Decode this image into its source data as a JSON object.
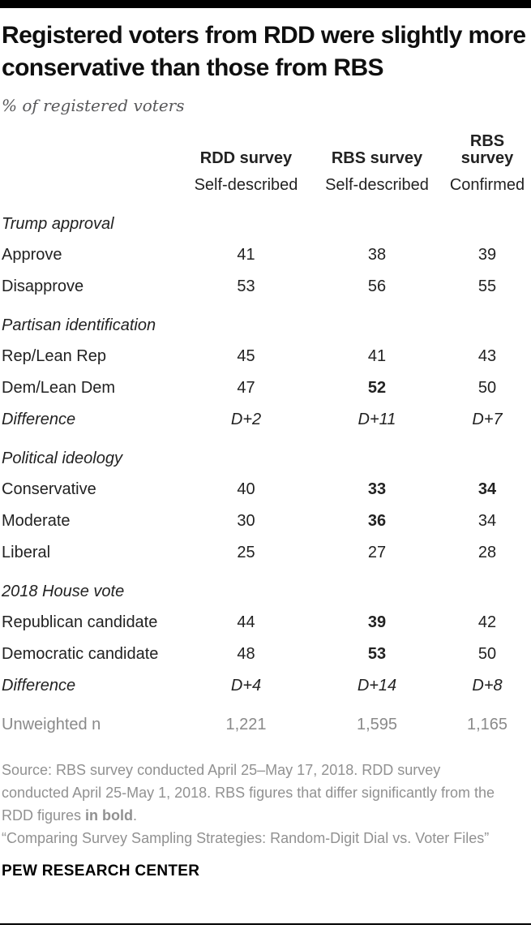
{
  "colors": {
    "top_bar": "#000000",
    "title_text": "#0f0f0f",
    "subtitle_gray": "#58585a",
    "table_text": "#222222",
    "muted_gray": "#8a8a8a",
    "notes_gray": "#919191"
  },
  "chart_data": {
    "type": "table",
    "title": "Registered voters from RDD were slightly more conservative than those from RBS",
    "subtitle": "% of registered voters",
    "columns": [
      {
        "label": "RDD survey",
        "sublabel": "Self-described"
      },
      {
        "label": "RBS survey",
        "sublabel": "Self-described"
      },
      {
        "label": "RBS survey",
        "sublabel": "Confirmed"
      }
    ],
    "sections": [
      {
        "header": "Trump approval",
        "rows": [
          {
            "label": "Approve",
            "values": [
              {
                "t": "41"
              },
              {
                "t": "38"
              },
              {
                "t": "39"
              }
            ]
          },
          {
            "label": "Disapprove",
            "values": [
              {
                "t": "53"
              },
              {
                "t": "56"
              },
              {
                "t": "55"
              }
            ]
          }
        ]
      },
      {
        "header": "Partisan identification",
        "rows": [
          {
            "label": "Rep/Lean Rep",
            "values": [
              {
                "t": "45"
              },
              {
                "t": "41"
              },
              {
                "t": "43"
              }
            ]
          },
          {
            "label": "Dem/Lean Dem",
            "values": [
              {
                "t": "47"
              },
              {
                "t": "52",
                "bold": true
              },
              {
                "t": "50"
              }
            ]
          },
          {
            "label": "Difference",
            "italic": true,
            "values": [
              {
                "t": "D+2"
              },
              {
                "t": "D+11"
              },
              {
                "t": "D+7"
              }
            ]
          }
        ]
      },
      {
        "header": "Political ideology",
        "rows": [
          {
            "label": "Conservative",
            "values": [
              {
                "t": "40"
              },
              {
                "t": "33",
                "bold": true
              },
              {
                "t": "34",
                "bold": true
              }
            ]
          },
          {
            "label": "Moderate",
            "values": [
              {
                "t": "30"
              },
              {
                "t": "36",
                "bold": true
              },
              {
                "t": "34"
              }
            ]
          },
          {
            "label": "Liberal",
            "values": [
              {
                "t": "25"
              },
              {
                "t": "27"
              },
              {
                "t": "28"
              }
            ]
          }
        ]
      },
      {
        "header": "2018 House vote",
        "rows": [
          {
            "label": "Republican candidate",
            "values": [
              {
                "t": "44"
              },
              {
                "t": "39",
                "bold": true
              },
              {
                "t": "42"
              }
            ]
          },
          {
            "label": "Democratic candidate",
            "values": [
              {
                "t": "48"
              },
              {
                "t": "53",
                "bold": true
              },
              {
                "t": "50"
              }
            ]
          },
          {
            "label": "Difference",
            "italic": true,
            "values": [
              {
                "t": "D+4"
              },
              {
                "t": "D+14"
              },
              {
                "t": "D+8"
              }
            ]
          }
        ]
      }
    ],
    "summary_row": {
      "label": "Unweighted n",
      "values": [
        {
          "t": "1,221"
        },
        {
          "t": "1,595"
        },
        {
          "t": "1,165"
        }
      ]
    }
  },
  "notes": {
    "source_text": "Source: RBS survey conducted April 25–May 17, 2018. RDD survey conducted April 25-May 1, 2018. RBS figures that differ significantly from the RDD figures ",
    "source_bold": "in bold",
    "source_period": ".",
    "report_title": "“Comparing Survey Sampling Strategies: Random-Digit Dial vs. Voter Files”"
  },
  "footer": {
    "brand": "PEW RESEARCH CENTER"
  }
}
